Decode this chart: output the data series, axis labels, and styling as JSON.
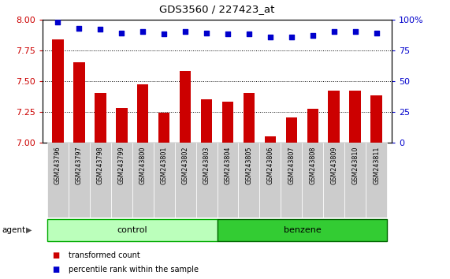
{
  "title": "GDS3560 / 227423_at",
  "samples": [
    "GSM243796",
    "GSM243797",
    "GSM243798",
    "GSM243799",
    "GSM243800",
    "GSM243801",
    "GSM243802",
    "GSM243803",
    "GSM243804",
    "GSM243805",
    "GSM243806",
    "GSM243807",
    "GSM243808",
    "GSM243809",
    "GSM243810",
    "GSM243811"
  ],
  "transformed_counts": [
    7.84,
    7.65,
    7.4,
    7.28,
    7.47,
    7.24,
    7.58,
    7.35,
    7.33,
    7.4,
    7.05,
    7.2,
    7.27,
    7.42,
    7.42,
    7.38
  ],
  "percentile_ranks": [
    98,
    93,
    92,
    89,
    90,
    88,
    90,
    89,
    88,
    88,
    86,
    86,
    87,
    90,
    90,
    89
  ],
  "ylim_left": [
    7.0,
    8.0
  ],
  "ylim_right": [
    0,
    100
  ],
  "yticks_left": [
    7.0,
    7.25,
    7.5,
    7.75,
    8.0
  ],
  "yticks_right_vals": [
    0,
    25,
    50,
    75,
    100
  ],
  "yticks_right_labels": [
    "0",
    "25",
    "50",
    "75",
    "100%"
  ],
  "bar_color": "#cc0000",
  "dot_color": "#0000cc",
  "grid_color": "#000000",
  "n_control": 8,
  "control_color": "#bbffbb",
  "benzene_color": "#33cc33",
  "agent_label": "agent",
  "control_label": "control",
  "benzene_label": "benzene",
  "legend_tc": "transformed count",
  "legend_pr": "percentile rank within the sample",
  "bg_plot": "#ffffff",
  "bg_label_strip": "#cccccc",
  "bg_fig": "#ffffff",
  "left_tick_color": "#cc0000",
  "right_tick_color": "#0000cc"
}
